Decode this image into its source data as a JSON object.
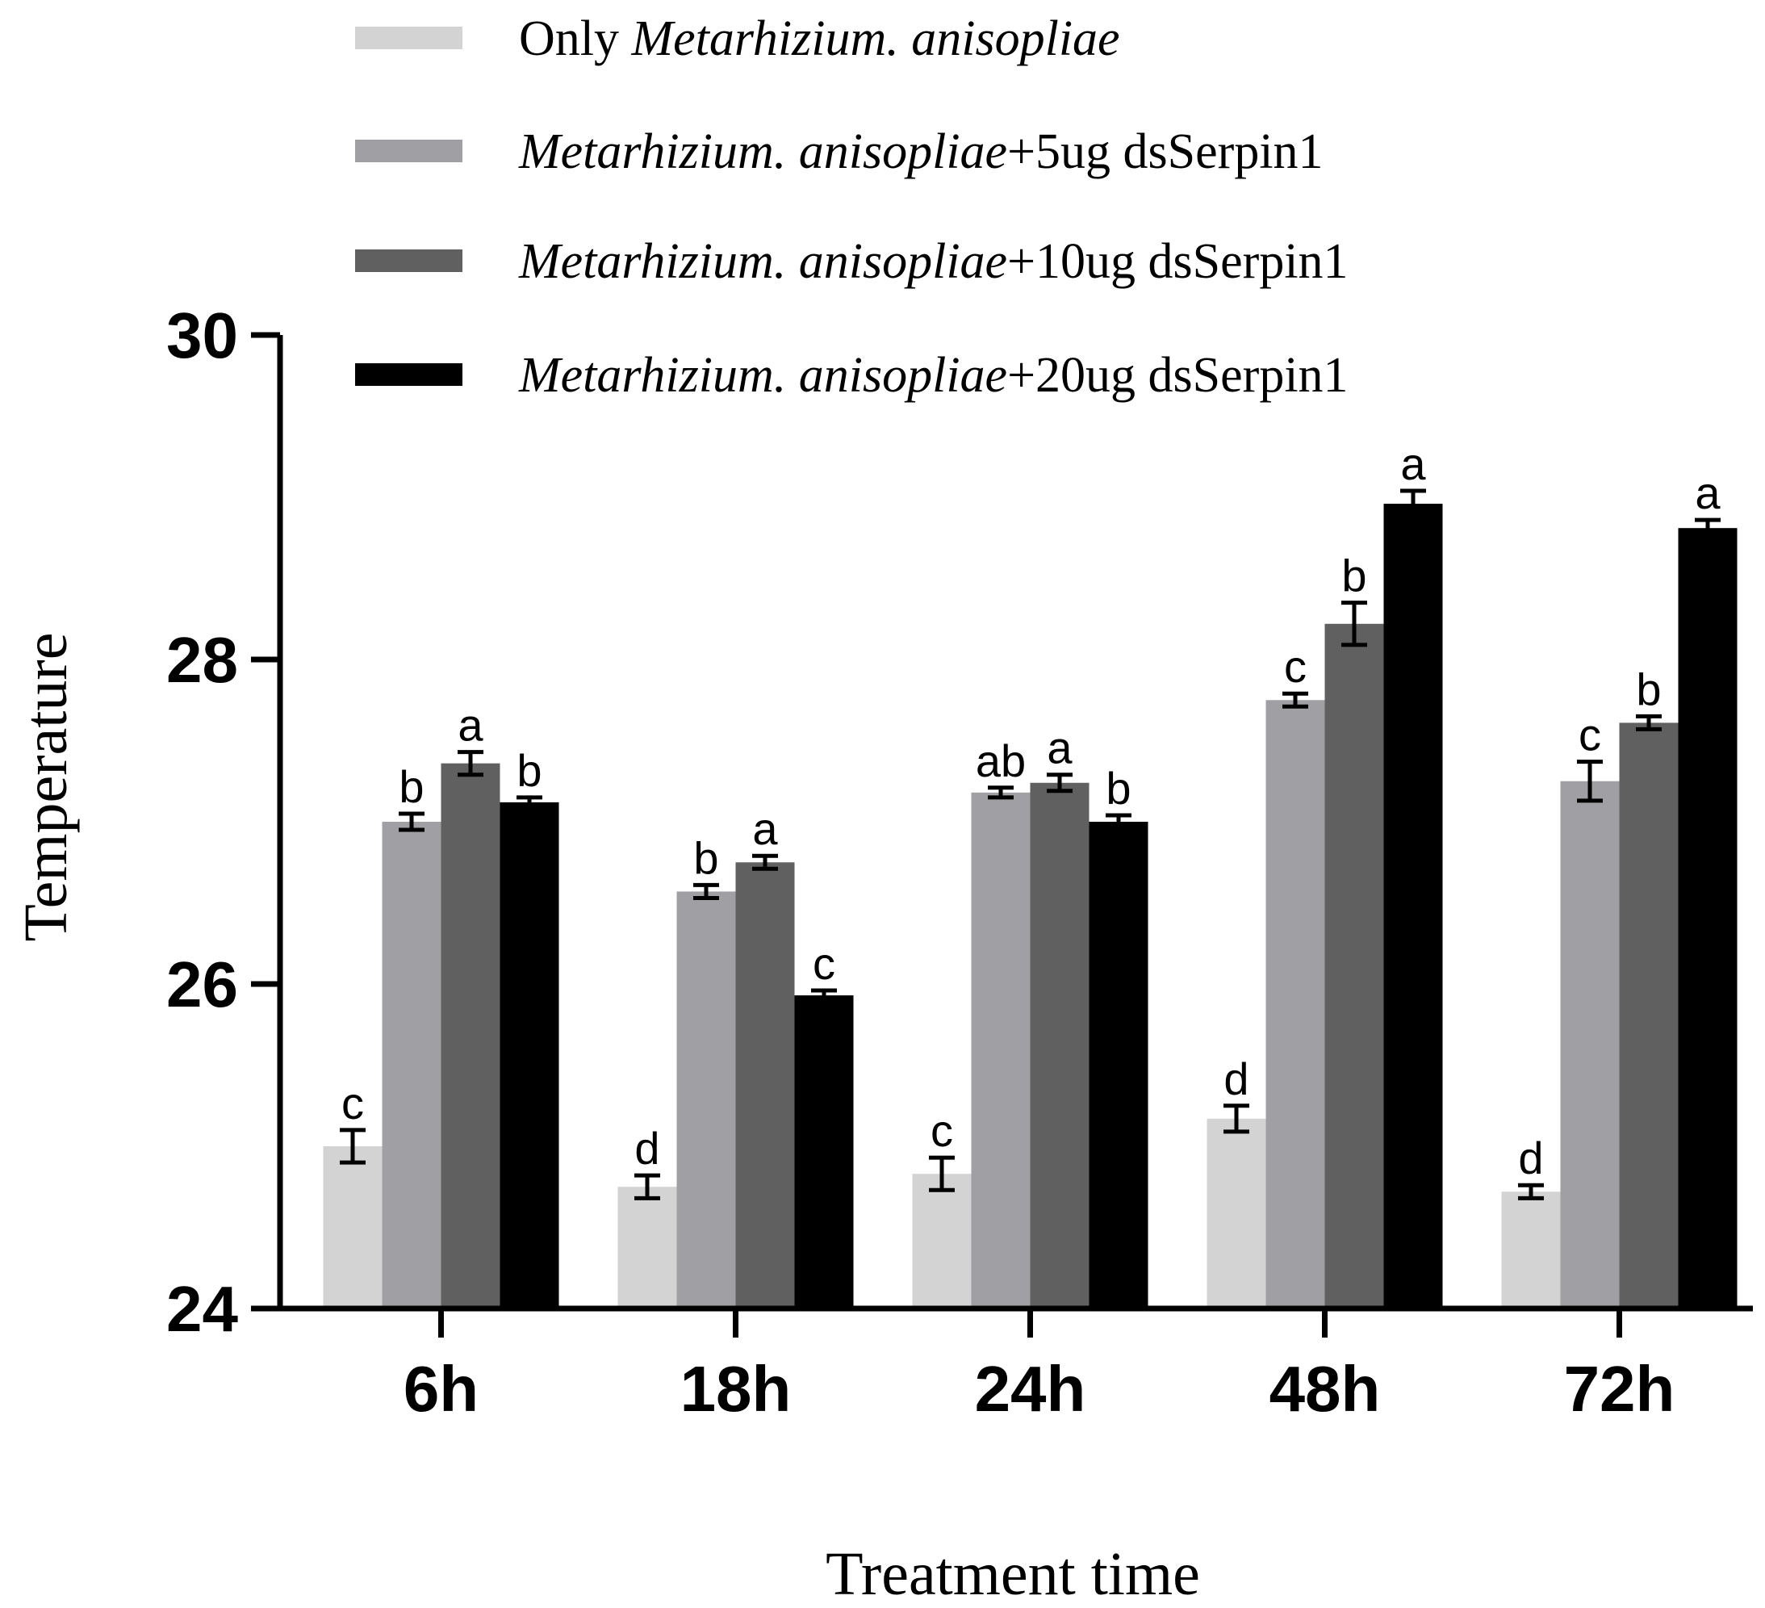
{
  "chart_data": {
    "type": "bar",
    "title": "",
    "xlabel": "Treatment time",
    "ylabel": "Temperature",
    "ylim": [
      24,
      30
    ],
    "yticks": [
      24,
      26,
      28,
      30
    ],
    "ytick_labels": [
      "24",
      "26",
      "28",
      "30"
    ],
    "categories": [
      "6h",
      "18h",
      "24h",
      "48h",
      "72h"
    ],
    "legend_position": "top",
    "series": [
      {
        "name": "Only Metarhizium. anisopliae",
        "legend_plain_prefix": "Only ",
        "legend_italic": "Metarhizium. anisopliae",
        "legend_plain_suffix": "",
        "color": "#d3d3d3",
        "values": [
          25.0,
          24.75,
          24.83,
          25.17,
          24.72
        ],
        "errors": [
          0.1,
          0.07,
          0.1,
          0.08,
          0.04
        ],
        "letters": [
          "c",
          "d",
          "c",
          "d",
          "d"
        ]
      },
      {
        "name": "Metarhizium. anisopliae+5ug dsSerpin1",
        "legend_plain_prefix": "",
        "legend_italic": "Metarhizium. anisopliae",
        "legend_plain_suffix": "+5ug dsSerpin1",
        "color": "#a0a0a4",
        "values": [
          27.0,
          26.57,
          27.18,
          27.75,
          27.25
        ],
        "errors": [
          0.05,
          0.04,
          0.03,
          0.04,
          0.12
        ],
        "letters": [
          "b",
          "b",
          "ab",
          "c",
          "c"
        ]
      },
      {
        "name": "Metarhizium. anisopliae+10ug dsSerpin1",
        "legend_plain_prefix": "",
        "legend_italic": "Metarhizium. anisopliae",
        "legend_plain_suffix": "+10ug dsSerpin1",
        "color": "#606060",
        "values": [
          27.36,
          26.75,
          27.24,
          28.22,
          27.61
        ],
        "errors": [
          0.07,
          0.04,
          0.05,
          0.13,
          0.04
        ],
        "letters": [
          "a",
          "a",
          "a",
          "b",
          "b"
        ]
      },
      {
        "name": "Metarhizium. anisopliae+20ug dsSerpin1",
        "legend_plain_prefix": "",
        "legend_italic": "Metarhizium. anisopliae",
        "legend_plain_suffix": "+20ug dsSerpin1",
        "color": "#000000",
        "values": [
          27.12,
          25.93,
          27.0,
          28.96,
          28.81
        ],
        "errors": [
          0.03,
          0.03,
          0.04,
          0.08,
          0.05
        ],
        "letters": [
          "b",
          "c",
          "b",
          "a",
          "a"
        ]
      }
    ]
  }
}
